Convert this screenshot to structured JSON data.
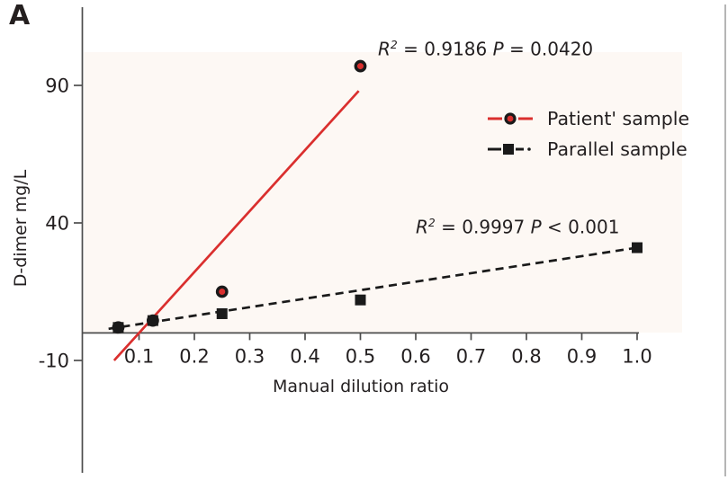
{
  "panel_label": "A",
  "colors": {
    "red": "#da2f2e",
    "black": "#1a1a1a",
    "axis": "#4d4d4d",
    "border": "#b5b5b5",
    "plot_bg": "#fdf8f4"
  },
  "axes": {
    "x_label": "Manual dilution ratio",
    "y_label": "D-dimer mg/L"
  },
  "stats": [
    {
      "r": "R",
      "exp": "2",
      "mid": "= 0.9186",
      "p": "P",
      "tail": "= 0.0420"
    },
    {
      "r": "R",
      "exp": "2",
      "mid": "= 0.9997",
      "p": "P",
      "tail": "< 0.001"
    }
  ],
  "legend": {
    "items": [
      {
        "label": "Patient' sample",
        "marker": "circle"
      },
      {
        "label": "Parallel sample",
        "marker": "square"
      }
    ]
  },
  "chart_data": {
    "type": "scatter",
    "title": "",
    "xlabel": "Manual dilution ratio",
    "ylabel": "D-dimer mg/L",
    "xlim": [
      0,
      1.05
    ],
    "ylim": [
      -10,
      105
    ],
    "grid": false,
    "legend_position": "upper right",
    "x_ticks": [
      0.1,
      0.2,
      0.3,
      0.4,
      0.5,
      0.6,
      0.7,
      0.8,
      0.9,
      1.0
    ],
    "x_tick_labels": [
      "0.1",
      "0.2",
      "0.3",
      "0.4",
      "0.5",
      "0.6",
      "0.7",
      "0.8",
      "0.9",
      "1.0"
    ],
    "y_ticks": [
      90,
      40,
      -10
    ],
    "y_tick_labels": [
      "90",
      "40",
      "-10"
    ],
    "series": [
      {
        "name": "Patient' sample",
        "marker": "circle",
        "line_style": "solid",
        "color": "#da2f2e",
        "points": [
          [
            0.0625,
            2
          ],
          [
            0.125,
            4.5
          ],
          [
            0.25,
            15
          ],
          [
            0.5,
            97
          ]
        ],
        "trend": {
          "x1": 0.055,
          "y1": -10,
          "x2": 0.497,
          "y2": 88
        },
        "r_squared": 0.9186,
        "p_value": "= 0.0420"
      },
      {
        "name": "Parallel sample",
        "marker": "square",
        "line_style": "dashed",
        "color": "#1a1a1a",
        "points": [
          [
            0.0625,
            2
          ],
          [
            0.125,
            4.5
          ],
          [
            0.25,
            7
          ],
          [
            0.5,
            12
          ],
          [
            1.0,
            31
          ]
        ],
        "trend": {
          "x1": 0.045,
          "y1": 1.5,
          "x2": 1.0,
          "y2": 31
        },
        "r_squared": 0.9997,
        "p_value": "< 0.001"
      }
    ]
  }
}
